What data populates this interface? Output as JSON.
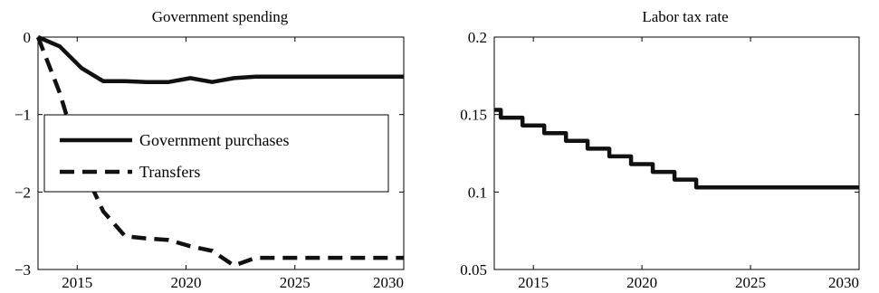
{
  "chart_data": [
    {
      "type": "line",
      "title": "Government spending",
      "xlim": [
        2013.2,
        2030
      ],
      "ylim": [
        -3,
        0
      ],
      "x_ticks": [
        2015,
        2020,
        2025,
        2030
      ],
      "y_ticks": [
        0,
        -1,
        -2,
        -3
      ],
      "x_tick_labels": [
        "2015",
        "2020",
        "2025",
        "2030"
      ],
      "y_tick_labels": [
        "0",
        "−1",
        "−2",
        "−3"
      ],
      "legend_position": "inside-left",
      "series": [
        {
          "name": "Government purchases",
          "style": "solid",
          "x": [
            2013.2,
            2014.2,
            2015.2,
            2016.2,
            2017.2,
            2018.2,
            2019.2,
            2020.2,
            2021.2,
            2022.2,
            2023.2,
            2030
          ],
          "y": [
            0,
            -0.12,
            -0.4,
            -0.57,
            -0.57,
            -0.58,
            -0.58,
            -0.53,
            -0.58,
            -0.53,
            -0.51,
            -0.51
          ]
        },
        {
          "name": "Transfers",
          "style": "dashed",
          "x": [
            2013.2,
            2014.2,
            2015.2,
            2016.2,
            2017.2,
            2018.2,
            2019.2,
            2020.2,
            2021.2,
            2022.2,
            2023.2,
            2030
          ],
          "y": [
            0,
            -0.72,
            -1.65,
            -2.25,
            -2.57,
            -2.6,
            -2.62,
            -2.7,
            -2.76,
            -2.95,
            -2.85,
            -2.85
          ]
        }
      ]
    },
    {
      "type": "line",
      "title": "Labor tax rate",
      "xlim": [
        2013.2,
        2030
      ],
      "ylim": [
        0.05,
        0.2
      ],
      "x_ticks": [
        2015,
        2020,
        2025,
        2030
      ],
      "y_ticks": [
        0.2,
        0.15,
        0.1,
        0.05
      ],
      "x_tick_labels": [
        "2015",
        "2020",
        "2025",
        "2030"
      ],
      "y_tick_labels": [
        "0.2",
        "0.15",
        "0.1",
        "0.05"
      ],
      "series": [
        {
          "style": "solid-step",
          "x": [
            2013.2,
            2013.5,
            2013.5,
            2014.5,
            2014.5,
            2015.5,
            2015.5,
            2016.5,
            2016.5,
            2017.5,
            2017.5,
            2018.5,
            2018.5,
            2019.5,
            2019.5,
            2020.5,
            2020.5,
            2021.5,
            2021.5,
            2022.5,
            2022.5,
            2030
          ],
          "y": [
            0.153,
            0.153,
            0.148,
            0.148,
            0.143,
            0.143,
            0.138,
            0.138,
            0.133,
            0.133,
            0.128,
            0.128,
            0.123,
            0.123,
            0.118,
            0.118,
            0.113,
            0.113,
            0.108,
            0.108,
            0.103,
            0.103
          ]
        }
      ]
    }
  ]
}
